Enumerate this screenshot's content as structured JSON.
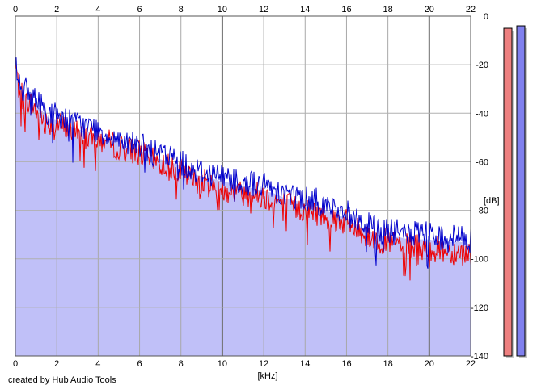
{
  "credit": "created by Hub Audio Tools",
  "chart_data": {
    "type": "line",
    "xlabel": "[kHz]",
    "ylabel": "[dB]",
    "xlim": [
      0,
      22
    ],
    "ylim": [
      -140,
      0
    ],
    "x_ticks": [
      "0",
      "2",
      "4",
      "6",
      "8",
      "10",
      "12",
      "14",
      "16",
      "18",
      "20",
      "22"
    ],
    "y_ticks": [
      "0",
      "-20",
      "-40",
      "-60",
      "-80",
      "-100",
      "-120",
      "-140"
    ],
    "grid": true,
    "series": [
      {
        "color": "#ee0000",
        "x": [
          0,
          0.1,
          0.3,
          0.5,
          0.8,
          1.0,
          1.3,
          1.6,
          2.0,
          2.4,
          2.8,
          3.2,
          3.6,
          4.0,
          4.5,
          5.0,
          5.5,
          6.0,
          6.5,
          7.0,
          7.5,
          8.0,
          8.5,
          9.0,
          9.5,
          10.0,
          10.5,
          11.0,
          11.5,
          12.0,
          12.5,
          13.0,
          13.5,
          14.0,
          14.5,
          15.0,
          15.5,
          16.0,
          16.5,
          17.0,
          17.5,
          18.0,
          18.5,
          19.0,
          19.5,
          20.0,
          20.5,
          21.0,
          21.5,
          22.0
        ],
        "y": [
          -18,
          -27,
          -32,
          -35,
          -37,
          -39,
          -42,
          -44,
          -44,
          -46,
          -47,
          -49,
          -50,
          -51,
          -52,
          -54,
          -55,
          -56,
          -59,
          -61,
          -62,
          -64,
          -67,
          -68,
          -70,
          -71,
          -72,
          -73,
          -73,
          -74,
          -76,
          -77,
          -79,
          -80,
          -81,
          -82,
          -84,
          -85,
          -88,
          -90,
          -92,
          -93,
          -94,
          -95,
          -95,
          -96,
          -96,
          -97,
          -97,
          -98
        ]
      },
      {
        "color": "#0000cc",
        "x": [
          0,
          0.1,
          0.3,
          0.5,
          0.8,
          1.0,
          1.3,
          1.6,
          2.0,
          2.4,
          2.8,
          3.2,
          3.6,
          4.0,
          4.5,
          5.0,
          5.5,
          6.0,
          6.5,
          7.0,
          7.5,
          8.0,
          8.5,
          9.0,
          9.5,
          10.0,
          10.5,
          11.0,
          11.5,
          12.0,
          12.5,
          13.0,
          13.5,
          14.0,
          14.5,
          15.0,
          15.5,
          16.0,
          16.5,
          17.0,
          17.5,
          18.0,
          18.5,
          19.0,
          19.5,
          20.0,
          20.5,
          21.0,
          21.5,
          22.0
        ],
        "y": [
          -16,
          -25,
          -29,
          -31,
          -33,
          -35,
          -37,
          -40,
          -41,
          -42,
          -44,
          -45,
          -46,
          -47,
          -49,
          -50,
          -52,
          -53,
          -56,
          -57,
          -58,
          -60,
          -63,
          -64,
          -65,
          -66,
          -67,
          -68,
          -69,
          -70,
          -71,
          -73,
          -74,
          -75,
          -76,
          -78,
          -80,
          -81,
          -84,
          -86,
          -88,
          -89,
          -89,
          -90,
          -90,
          -90,
          -91,
          -91,
          -91,
          -92
        ]
      }
    ],
    "meters": [
      {
        "color": "#ee8080",
        "level_db": -5
      },
      {
        "color": "#8080ee",
        "level_db": -4
      }
    ]
  }
}
